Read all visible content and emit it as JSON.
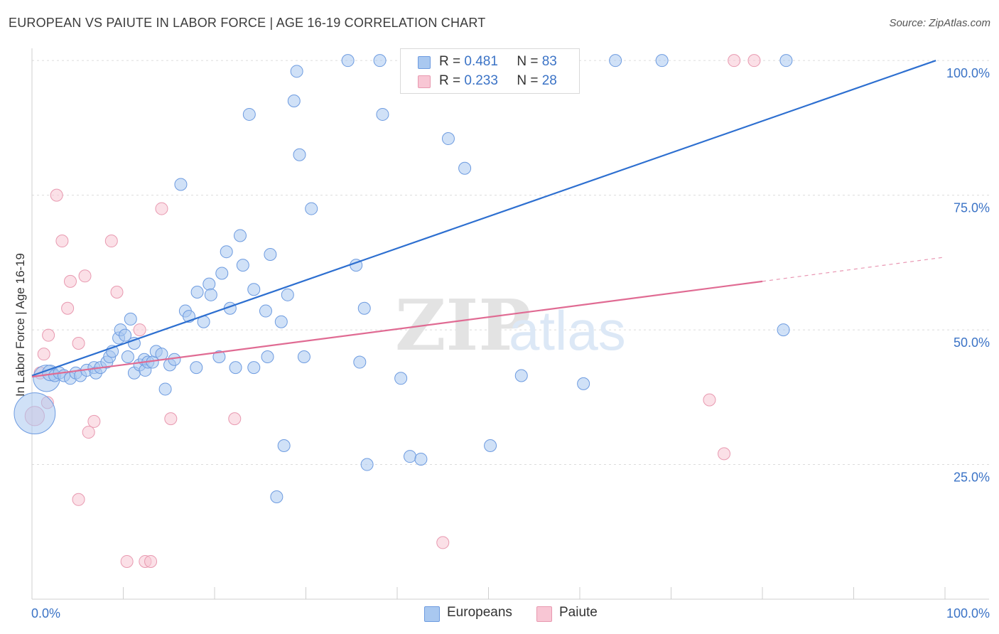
{
  "header": {
    "title": "EUROPEAN VS PAIUTE IN LABOR FORCE | AGE 16-19 CORRELATION CHART",
    "source": "Source: ZipAtlas.com"
  },
  "watermark": {
    "zip": "ZIP",
    "atlas": "atlas"
  },
  "legend": {
    "rows": [
      {
        "r_label": "R =",
        "r_value": "0.481",
        "n_label": "N =",
        "n_value": "83",
        "color": "#a9c8f0",
        "border": "#6d9be0"
      },
      {
        "r_label": "R =",
        "r_value": "0.233",
        "n_label": "N =",
        "n_value": "28",
        "color": "#f8c6d4",
        "border": "#e899b0"
      }
    ]
  },
  "bottom_legend": {
    "europeans": "Europeans",
    "paiute": "Paiute"
  },
  "chart_data": {
    "type": "scatter",
    "title": "EUROPEAN VS PAIUTE IN LABOR FORCE | AGE 16-19 CORRELATION CHART",
    "xlabel": "",
    "ylabel": "In Labor Force | Age 16-19",
    "xlim": [
      0,
      100
    ],
    "ylim": [
      0,
      102
    ],
    "x_tick_labels": [
      "0.0%",
      "100.0%"
    ],
    "y_ticks": [
      25,
      50,
      75,
      100
    ],
    "y_tick_labels": [
      "25.0%",
      "50.0%",
      "75.0%",
      "100.0%"
    ],
    "grid": true,
    "legend_position": "top-center",
    "series": [
      {
        "name": "Europeans",
        "color": "#a9c8f0",
        "stroke": "#6d9be0",
        "line_color": "#2d6fd0",
        "trend": {
          "x": [
            0,
            99
          ],
          "y": [
            41.5,
            100
          ]
        },
        "points": [
          [
            0.3,
            34.5,
            3.4
          ],
          [
            1.6,
            41,
            2.2
          ],
          [
            2.0,
            42,
            1.3
          ],
          [
            2.5,
            41.5,
            1.0
          ],
          [
            3.0,
            42,
            1.0
          ],
          [
            3.5,
            41.5,
            1.0
          ],
          [
            4.2,
            41,
            1.0
          ],
          [
            4.8,
            42,
            1.0
          ],
          [
            5.3,
            41.5,
            1.0
          ],
          [
            6.0,
            42.5,
            1.0
          ],
          [
            6.8,
            43,
            1.0
          ],
          [
            7.0,
            42,
            1.0
          ],
          [
            7.5,
            43,
            1.0
          ],
          [
            8.2,
            44,
            1.0
          ],
          [
            8.5,
            45,
            1.0
          ],
          [
            8.8,
            46,
            1.0
          ],
          [
            9.5,
            48.5,
            1.0
          ],
          [
            9.7,
            50,
            1.0
          ],
          [
            10.2,
            49,
            1.0
          ],
          [
            10.5,
            45,
            1.0
          ],
          [
            10.8,
            52,
            1.0
          ],
          [
            11.2,
            47.5,
            1.0
          ],
          [
            11.2,
            42,
            1.0
          ],
          [
            11.8,
            43.5,
            1.0
          ],
          [
            12.3,
            44.5,
            1.0
          ],
          [
            12.4,
            42.5,
            1.0
          ],
          [
            12.7,
            44,
            1.0
          ],
          [
            13.2,
            44,
            1.0
          ],
          [
            13.6,
            46,
            1.0
          ],
          [
            14.2,
            45.5,
            1.0
          ],
          [
            14.6,
            39,
            1.0
          ],
          [
            15.1,
            43.5,
            1.0
          ],
          [
            15.6,
            44.5,
            1.0
          ],
          [
            16.3,
            77,
            1.0
          ],
          [
            16.8,
            53.5,
            1.0
          ],
          [
            17.2,
            52.5,
            1.0
          ],
          [
            18.0,
            43,
            1.0
          ],
          [
            18.1,
            57,
            1.0
          ],
          [
            18.8,
            51.5,
            1.0
          ],
          [
            19.4,
            58.5,
            1.0
          ],
          [
            19.6,
            56.5,
            1.0
          ],
          [
            20.5,
            45,
            1.0
          ],
          [
            20.8,
            60.5,
            1.0
          ],
          [
            21.3,
            64.5,
            1.0
          ],
          [
            21.7,
            54,
            1.0
          ],
          [
            22.3,
            43,
            1.0
          ],
          [
            22.8,
            67.5,
            1.0
          ],
          [
            23.1,
            62,
            1.0
          ],
          [
            23.8,
            90,
            1.0
          ],
          [
            24.3,
            57.5,
            1.0
          ],
          [
            24.3,
            43,
            1.0
          ],
          [
            25.6,
            53.5,
            1.0
          ],
          [
            25.8,
            45,
            1.0
          ],
          [
            26.1,
            64,
            1.0
          ],
          [
            27.3,
            51.5,
            1.0
          ],
          [
            27.6,
            28.5,
            1.0
          ],
          [
            28.0,
            56.5,
            1.0
          ],
          [
            26.8,
            19,
            1.0
          ],
          [
            28.7,
            92.5,
            1.0
          ],
          [
            29.0,
            98,
            1.0
          ],
          [
            29.3,
            82.5,
            1.0
          ],
          [
            29.8,
            45,
            1.0
          ],
          [
            30.6,
            72.5,
            1.0
          ],
          [
            34.6,
            100,
            1.0
          ],
          [
            35.5,
            62,
            1.0
          ],
          [
            35.9,
            44,
            1.0
          ],
          [
            36.4,
            54,
            1.0
          ],
          [
            36.7,
            25,
            1.0
          ],
          [
            38.1,
            100,
            1.0
          ],
          [
            38.4,
            90,
            1.0
          ],
          [
            40.4,
            41,
            1.0
          ],
          [
            41.4,
            26.5,
            1.0
          ],
          [
            42.6,
            26,
            1.0
          ],
          [
            45.6,
            85.5,
            1.0
          ],
          [
            47.4,
            80,
            1.0
          ],
          [
            50.2,
            28.5,
            1.0
          ],
          [
            53.6,
            41.5,
            1.0
          ],
          [
            58.9,
            100,
            1.0
          ],
          [
            60.4,
            40,
            1.0
          ],
          [
            63.9,
            100,
            1.0
          ],
          [
            69.0,
            100,
            1.0
          ],
          [
            82.3,
            50,
            1.0
          ],
          [
            82.6,
            100,
            1.0
          ]
        ]
      },
      {
        "name": "Paiute",
        "color": "#f8c6d4",
        "stroke": "#e899b0",
        "line_color": "#e06b93",
        "trend": {
          "x": [
            0,
            80
          ],
          "y": [
            41.3,
            59
          ]
        },
        "trend_extension": {
          "x": [
            80,
            100
          ],
          "y": [
            59,
            63.5
          ]
        },
        "points": [
          [
            0.3,
            34,
            1.6
          ],
          [
            0.9,
            42,
            1.0
          ],
          [
            1.3,
            45.5,
            1.0
          ],
          [
            1.7,
            36.5,
            1.0
          ],
          [
            1.8,
            49,
            1.0
          ],
          [
            2.7,
            75,
            1.0
          ],
          [
            3.3,
            66.5,
            1.0
          ],
          [
            3.9,
            54,
            1.0
          ],
          [
            4.2,
            59,
            1.0
          ],
          [
            5.1,
            47.5,
            1.0
          ],
          [
            5.1,
            18.5,
            1.0
          ],
          [
            5.8,
            60,
            1.0
          ],
          [
            6.2,
            31,
            1.0
          ],
          [
            6.8,
            33,
            1.0
          ],
          [
            8.7,
            66.5,
            1.0
          ],
          [
            9.3,
            57,
            1.0
          ],
          [
            10.4,
            7,
            1.0
          ],
          [
            11.8,
            50,
            1.0
          ],
          [
            12.4,
            7,
            1.0
          ],
          [
            13.0,
            7,
            1.0
          ],
          [
            14.2,
            72.5,
            1.0
          ],
          [
            15.2,
            33.5,
            1.0
          ],
          [
            22.2,
            33.5,
            1.0
          ],
          [
            45.0,
            10.5,
            1.0
          ],
          [
            74.2,
            37,
            1.0
          ],
          [
            75.8,
            27,
            1.0
          ],
          [
            76.9,
            100,
            1.0
          ],
          [
            79.1,
            100,
            1.0
          ]
        ]
      }
    ]
  }
}
